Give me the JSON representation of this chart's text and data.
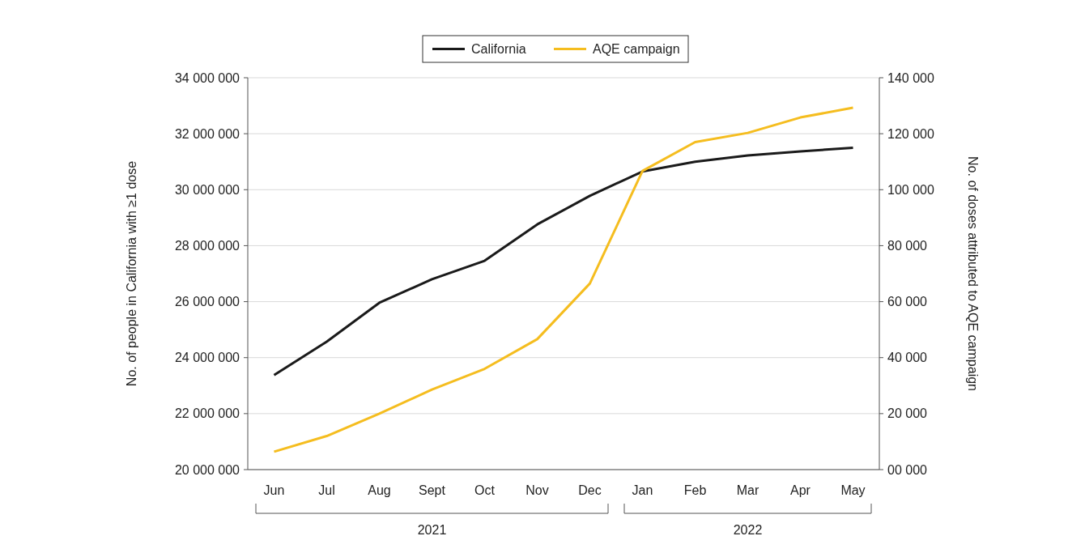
{
  "chart_data": {
    "type": "line",
    "categories": [
      "Jun",
      "Jul",
      "Aug",
      "Sept",
      "Oct",
      "Nov",
      "Dec",
      "Jan",
      "Feb",
      "Mar",
      "Apr",
      "May"
    ],
    "ylabel": "No. of people in California with ≥1 dose",
    "y2label": "No. of doses attributed to AQE campaign",
    "series": [
      {
        "name": "California",
        "color": "#1a1a1a",
        "values": [
          23380000,
          24570000,
          25960000,
          26800000,
          27460000,
          28760000,
          29780000,
          30650000,
          31000000,
          31220000,
          31370000,
          31500000
        ]
      },
      {
        "name": "AQE campaign",
        "color": "#f5bd1f",
        "axis": "y2",
        "values": [
          6400,
          12000,
          20000,
          28600,
          36000,
          46600,
          66500,
          106700,
          117000,
          120300,
          125800,
          129300
        ]
      }
    ],
    "ylim": [
      20000000,
      34000000
    ],
    "yticks": [
      {
        "value": 20000000,
        "label": "20 000 000"
      },
      {
        "value": 22000000,
        "label": "22 000 000"
      },
      {
        "value": 24000000,
        "label": "24 000 000"
      },
      {
        "value": 26000000,
        "label": "26 000 000"
      },
      {
        "value": 28000000,
        "label": "28 000 000"
      },
      {
        "value": 30000000,
        "label": "30 000 000"
      },
      {
        "value": 32000000,
        "label": "32 000 000"
      },
      {
        "value": 34000000,
        "label": "34 000 000"
      }
    ],
    "y2lim": [
      0,
      140000
    ],
    "y2ticks": [
      {
        "value": 0,
        "label": "00 000"
      },
      {
        "value": 20000,
        "label": "20 000"
      },
      {
        "value": 40000,
        "label": "40 000"
      },
      {
        "value": 60000,
        "label": "60 000"
      },
      {
        "value": 80000,
        "label": "80 000"
      },
      {
        "value": 100000,
        "label": "100 000"
      },
      {
        "value": 120000,
        "label": "120 000"
      },
      {
        "value": 140000,
        "label": "140 000"
      }
    ],
    "annotations": [
      "2021",
      "2022"
    ],
    "grid": "y",
    "legend": "top",
    "line_style": "solid",
    "marker": "none"
  }
}
